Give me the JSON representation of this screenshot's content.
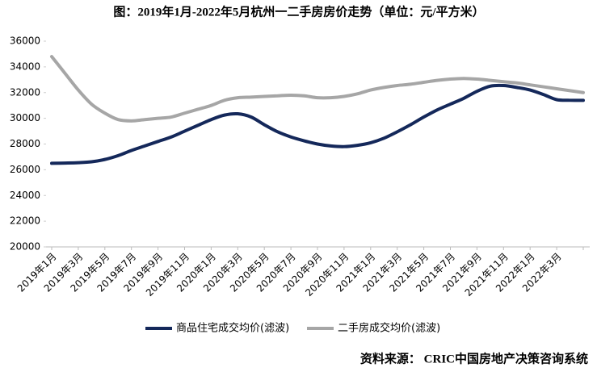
{
  "chart_data": {
    "type": "line",
    "title": "图：2019年1月-2022年5月杭州一二手房房价走势（单位：元/平方米）",
    "source": "资料来源： CRIC中国房地产决策咨询系统",
    "categories": [
      "2019年1月",
      null,
      "2019年3月",
      null,
      "2019年5月",
      null,
      "2019年7月",
      null,
      "2019年9月",
      null,
      "2019年11月",
      null,
      "2020年1月",
      null,
      "2020年3月",
      null,
      "2020年5月",
      null,
      "2020年7月",
      null,
      "2020年9月",
      null,
      "2020年11月",
      null,
      "2021年1月",
      null,
      "2021年3月",
      null,
      "2021年5月",
      null,
      "2021年7月",
      null,
      "2021年9月",
      null,
      "2021年11月",
      null,
      "2022年1月",
      null,
      "2022年3月",
      null,
      null
    ],
    "series": [
      {
        "name": "商品住宅成交均价(滤波)",
        "color": "#14285a",
        "values": [
          26500,
          26520,
          26550,
          26620,
          26800,
          27100,
          27500,
          27850,
          28200,
          28550,
          29000,
          29450,
          29900,
          30250,
          30350,
          30100,
          29500,
          28950,
          28550,
          28250,
          28000,
          27850,
          27800,
          27900,
          28100,
          28450,
          28950,
          29500,
          30100,
          30650,
          31100,
          31550,
          32100,
          32500,
          32550,
          32400,
          32200,
          31850,
          31450,
          31400,
          31400
        ]
      },
      {
        "name": "二手房成交均价(滤波)",
        "color": "#a6a6a6",
        "values": [
          34800,
          33500,
          32200,
          31100,
          30400,
          29900,
          29800,
          29900,
          30000,
          30100,
          30400,
          30700,
          31000,
          31400,
          31600,
          31650,
          31700,
          31750,
          31800,
          31750,
          31600,
          31600,
          31700,
          31900,
          32200,
          32400,
          32550,
          32650,
          32800,
          32950,
          33050,
          33100,
          33050,
          32950,
          32850,
          32750,
          32600,
          32450,
          32300,
          32150,
          32000
        ]
      }
    ],
    "ylim": [
      20000,
      36000
    ],
    "yticks": [
      20000,
      22000,
      24000,
      26000,
      28000,
      30000,
      32000,
      34000,
      36000
    ],
    "legend": "bottom"
  }
}
